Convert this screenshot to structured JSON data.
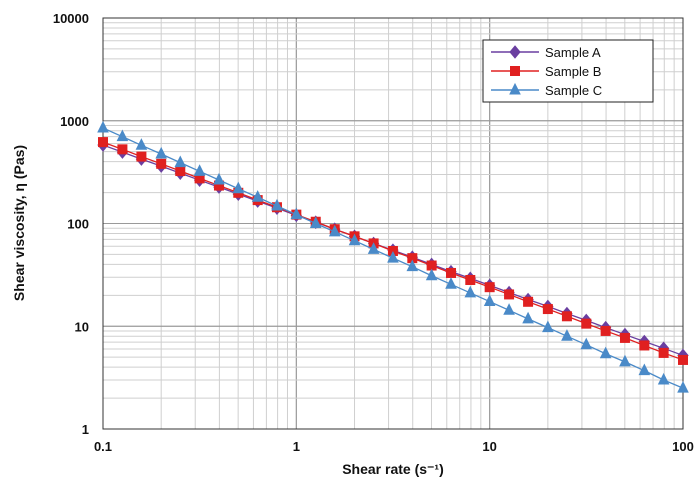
{
  "chart_data": {
    "type": "line",
    "xscale": "log",
    "yscale": "log",
    "xlim": [
      0.1,
      100
    ],
    "ylim": [
      1,
      10000
    ],
    "xlabel": "Shear rate (s⁻¹)",
    "ylabel": "Shear viscosity, η (Pas)",
    "x_ticks": [
      "0.1",
      "1",
      "10",
      "100"
    ],
    "y_ticks": [
      "1",
      "10",
      "100",
      "1000",
      "10000"
    ],
    "grid": true,
    "legend_position": "top-right",
    "x": [
      0.1,
      0.126,
      0.158,
      0.2,
      0.251,
      0.316,
      0.398,
      0.501,
      0.631,
      0.794,
      1,
      1.26,
      1.58,
      2,
      2.51,
      3.16,
      3.98,
      5.01,
      6.31,
      7.94,
      10,
      12.6,
      15.8,
      20,
      25.1,
      31.6,
      39.8,
      50.1,
      63.1,
      79.4,
      100
    ],
    "series": [
      {
        "name": "Sample A",
        "color": "#6a3fa0",
        "marker": "diamond",
        "values": [
          580,
          495,
          423,
          362,
          309,
          264,
          226,
          193,
          165,
          141,
          120,
          103,
          88,
          75,
          64,
          55,
          47,
          40,
          34,
          29.3,
          25,
          21.3,
          18.2,
          15.6,
          13.3,
          11.4,
          9.7,
          8.3,
          7.1,
          6.1,
          5.2
        ]
      },
      {
        "name": "Sample B",
        "color": "#e02020",
        "marker": "square",
        "values": [
          620,
          527,
          448,
          381,
          324,
          275,
          234,
          199,
          169,
          144,
          122,
          104,
          88,
          75,
          64,
          54,
          46,
          39,
          33,
          28.2,
          24,
          20.4,
          17.3,
          14.7,
          12.5,
          10.6,
          9.0,
          7.7,
          6.5,
          5.5,
          4.7
        ]
      },
      {
        "name": "Sample C",
        "color": "#4a8ac8",
        "marker": "triangle",
        "values": [
          850,
          700,
          577,
          475,
          391,
          322,
          265,
          218,
          180,
          148,
          122,
          100,
          83,
          68,
          56,
          46,
          38,
          31,
          25.6,
          21.1,
          17.4,
          14.3,
          11.8,
          9.7,
          8.0,
          6.6,
          5.4,
          4.5,
          3.7,
          3.0,
          2.5
        ]
      }
    ]
  }
}
